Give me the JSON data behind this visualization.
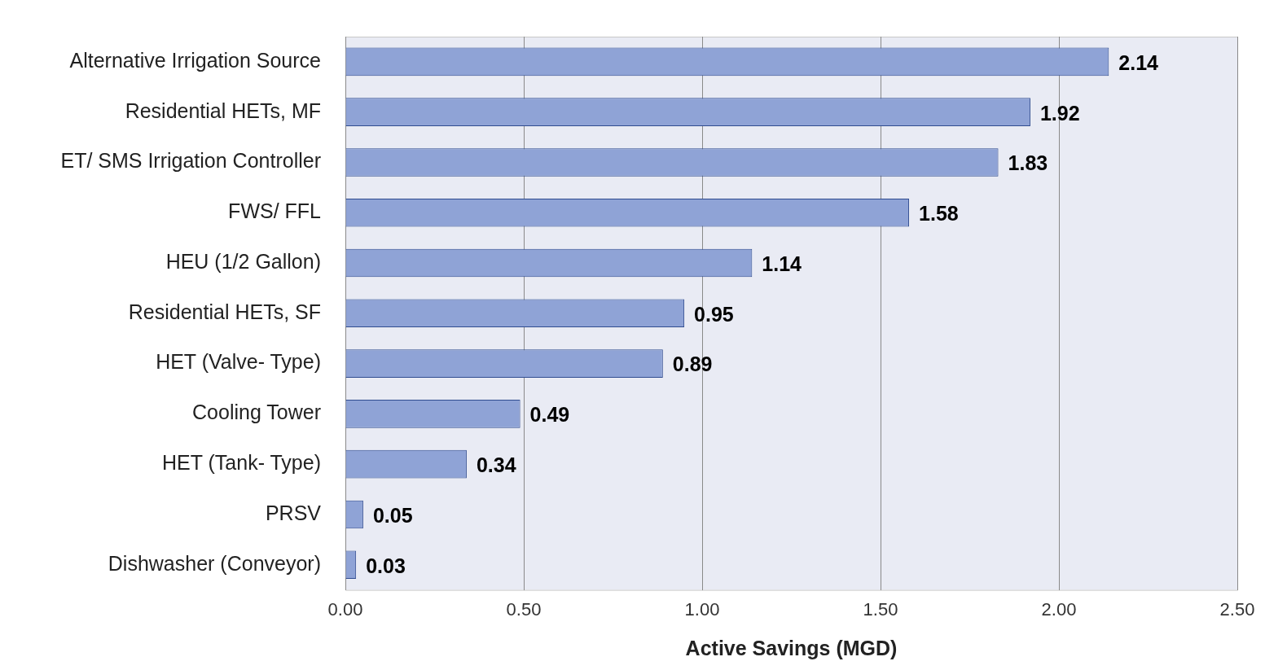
{
  "chart_data": {
    "type": "bar",
    "orientation": "horizontal",
    "xlabel": "Active Savings (MGD)",
    "categories": [
      "Alternative Irrigation Source",
      "Residential HETs, MF",
      "ET/ SMS Irrigation Controller",
      "FWS/ FFL",
      "HEU (1/2 Gallon)",
      "Residential HETs, SF",
      "HET (Valve- Type)",
      "Cooling Tower",
      "HET (Tank- Type)",
      "PRSV",
      "Dishwasher (Conveyor)"
    ],
    "values": [
      2.14,
      1.92,
      1.83,
      1.58,
      1.14,
      0.95,
      0.89,
      0.49,
      0.34,
      0.05,
      0.03
    ],
    "color": "#8fa3d6",
    "xlim": [
      0,
      2.5
    ],
    "xticks": [
      {
        "value": 0,
        "label": "0.00"
      },
      {
        "value": 0.5,
        "label": "0.50"
      },
      {
        "value": 1,
        "label": "1.00"
      },
      {
        "value": 1.5,
        "label": "1.50"
      },
      {
        "value": 2,
        "label": "2.00"
      },
      {
        "value": 2.5,
        "label": "2.50"
      }
    ],
    "grid": "x",
    "data_labels": true
  }
}
